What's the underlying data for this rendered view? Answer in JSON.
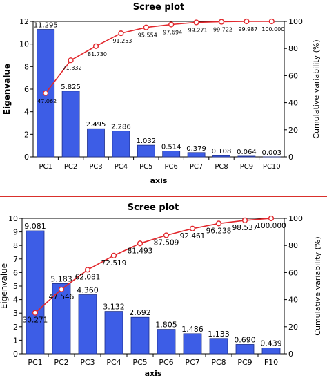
{
  "chart_data": [
    {
      "type": "bar",
      "title": "Scree plot",
      "xlabel": "axis",
      "ylabel": "Eigenvalue",
      "y2label": "Cumulative variability (%)",
      "categories": [
        "PC1",
        "PC2",
        "PC3",
        "PC4",
        "PC5",
        "PC6",
        "PC7",
        "PC8",
        "PC9",
        "PC10"
      ],
      "ylim": [
        0,
        12
      ],
      "yticks": [
        0,
        2,
        4,
        6,
        8,
        10,
        12
      ],
      "y2lim": [
        0,
        100
      ],
      "y2ticks": [
        0,
        20,
        40,
        60,
        80,
        100
      ],
      "series": [
        {
          "kind": "bar",
          "axis": "left",
          "values": [
            11.295,
            5.825,
            2.495,
            2.286,
            1.032,
            0.514,
            0.379,
            0.108,
            0.064,
            0.003
          ],
          "labels": [
            "11.295",
            "5.825",
            "2.495",
            "2.286",
            "1.032",
            "0.514",
            "0.379",
            "0.108",
            "0.064",
            "0.003"
          ],
          "color": "#3d5de6"
        },
        {
          "kind": "line",
          "axis": "right",
          "values": [
            47.062,
            71.332,
            81.73,
            91.253,
            95.554,
            97.694,
            99.271,
            99.722,
            99.987,
            100.0
          ],
          "labels": [
            "47.062",
            "71.332",
            "81.730",
            "91.253",
            "95.554",
            "97.694",
            "99.271",
            "99.722",
            "99.987",
            "100.000"
          ],
          "color": "#e2272c"
        }
      ],
      "grid": false
    },
    {
      "type": "bar",
      "title": "Scree plot",
      "xlabel": "axis",
      "ylabel": "Eigenvalue",
      "y2label": "Cumulative variability (%)",
      "categories": [
        "PC1",
        "PC2",
        "PC3",
        "PC4",
        "PC5",
        "PC6",
        "PC7",
        "PC8",
        "PC9",
        "F10"
      ],
      "ylim": [
        0,
        10
      ],
      "yticks": [
        0,
        1,
        2,
        3,
        4,
        5,
        6,
        7,
        8,
        9,
        10
      ],
      "y2lim": [
        0,
        100
      ],
      "y2ticks": [
        0,
        20,
        40,
        60,
        80,
        100
      ],
      "series": [
        {
          "kind": "bar",
          "axis": "left",
          "values": [
            9.081,
            5.183,
            4.36,
            3.132,
            2.692,
            1.805,
            1.486,
            1.133,
            0.69,
            0.439
          ],
          "labels": [
            "9.081",
            "5.183",
            "4.360",
            "3.132",
            "2.692",
            "1.805",
            "1.486",
            "1.133",
            "0.690",
            "0.439"
          ],
          "color": "#3d5de6"
        },
        {
          "kind": "line",
          "axis": "right",
          "values": [
            30.271,
            47.546,
            62.081,
            72.519,
            81.493,
            87.509,
            92.461,
            96.238,
            98.537,
            100.0
          ],
          "labels": [
            "30.271",
            "47.546",
            "62.081",
            "72.519",
            "81.493",
            "87.509",
            "92.461",
            "96.238",
            "98.537",
            "100.000"
          ],
          "color": "#e2272c"
        }
      ],
      "grid": false
    }
  ]
}
